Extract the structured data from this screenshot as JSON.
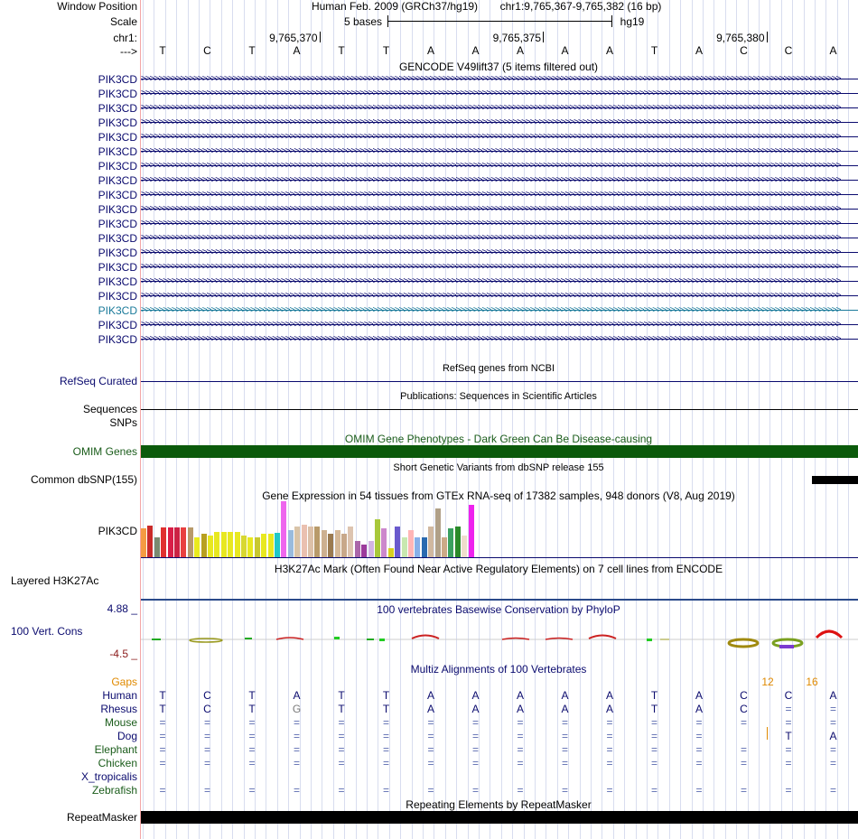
{
  "window_position": {
    "label": "Window Position",
    "assembly": "Human Feb. 2009 (GRCh37/hg19)",
    "range": "chr1:9,765,367-9,765,382 (16 bp)"
  },
  "scale": {
    "label": "Scale",
    "bar_text": "5 bases",
    "db": "hg19"
  },
  "chrom": {
    "label": "chr1:",
    "arrow_label": "--->",
    "positions": [
      "9,765,370",
      "9,765,375",
      "9,765,380"
    ]
  },
  "sequence": [
    "T",
    "C",
    "T",
    "A",
    "T",
    "T",
    "A",
    "A",
    "A",
    "A",
    "A",
    "T",
    "A",
    "C",
    "C",
    "A"
  ],
  "gencode": {
    "title": "GENCODE V49lift37 (5 items filtered out)",
    "transcripts": [
      "PIK3CD",
      "PIK3CD",
      "PIK3CD",
      "PIK3CD",
      "PIK3CD",
      "PIK3CD",
      "PIK3CD",
      "PIK3CD",
      "PIK3CD",
      "PIK3CD",
      "PIK3CD",
      "PIK3CD",
      "PIK3CD",
      "PIK3CD",
      "PIK3CD",
      "PIK3CD",
      "PIK3CD",
      "PIK3CD",
      "PIK3CD"
    ],
    "highlight_index": 16,
    "color": "#0a0a6e",
    "highlight_color": "#1a7a9a"
  },
  "refseq": {
    "label": "RefSeq Curated",
    "title": "RefSeq genes from NCBI"
  },
  "publications": {
    "label": "Sequences",
    "title": "Publications: Sequences in Scientific Articles"
  },
  "snps": {
    "label": "SNPs"
  },
  "omim": {
    "label": "OMIM Genes",
    "title": "OMIM Gene Phenotypes - Dark Green Can Be Disease-causing",
    "color": "#0b5a0b"
  },
  "dbsnp": {
    "label": "Common dbSNP(155)",
    "title": "Short Genetic Variants from dbSNP release 155"
  },
  "gtex": {
    "label": "PIK3CD",
    "title": "Gene Expression in 54 tissues from GTEx RNA-seq of 17382 samples, 948 donors (V8, Aug 2019)"
  },
  "h3k27ac": {
    "label": "Layered H3K27Ac",
    "title": "H3K27Ac Mark (Often Found Near Active Regulatory Elements) on 7 cell lines from ENCODE"
  },
  "phylop": {
    "label": "100 Vert. Cons",
    "max": "4.88 _",
    "min": "-4.5 _",
    "title": "100 vertebrates Basewise Conservation by PhyloP"
  },
  "multiz": {
    "title": "Multiz Alignments of 100 Vertebrates",
    "gaps_label": "Gaps",
    "gap_numbers": [
      "12",
      "16"
    ],
    "rows": [
      {
        "species": "Human",
        "color": "#0a0a6e",
        "bases": [
          "T",
          "C",
          "T",
          "A",
          "T",
          "T",
          "A",
          "A",
          "A",
          "A",
          "A",
          "T",
          "A",
          "C",
          "C",
          "A"
        ]
      },
      {
        "species": "Rhesus",
        "color": "#0a0a6e",
        "bases": [
          "T",
          "C",
          "T",
          "G",
          "T",
          "T",
          "A",
          "A",
          "A",
          "A",
          "A",
          "T",
          "A",
          "C",
          "=",
          "="
        ]
      },
      {
        "species": "Mouse",
        "color": "#1a5c1a",
        "bases": [
          "=",
          "=",
          "=",
          "=",
          "=",
          "=",
          "=",
          "=",
          "=",
          "=",
          "=",
          "=",
          "=",
          "=",
          "=",
          "="
        ]
      },
      {
        "species": "Dog",
        "color": "#0a0a6e",
        "bases": [
          "=",
          "=",
          "=",
          "=",
          "=",
          "=",
          "=",
          "=",
          "=",
          "=",
          "=",
          "=",
          "=",
          "",
          "T",
          "A"
        ]
      },
      {
        "species": "Elephant",
        "color": "#1a5c1a",
        "bases": [
          "=",
          "=",
          "=",
          "=",
          "=",
          "=",
          "=",
          "=",
          "=",
          "=",
          "=",
          "=",
          "=",
          "=",
          "=",
          "="
        ]
      },
      {
        "species": "Chicken",
        "color": "#1a5c1a",
        "bases": [
          "=",
          "=",
          "=",
          "=",
          "=",
          "=",
          "=",
          "=",
          "=",
          "=",
          "=",
          "=",
          "=",
          "=",
          "=",
          "="
        ]
      },
      {
        "species": "X_tropicalis",
        "color": "#0a0a6e",
        "bases": [
          "",
          "",
          "",
          "",
          "",
          "",
          "",
          "",
          "",
          "",
          "",
          "",
          "",
          "",
          "",
          ""
        ]
      },
      {
        "species": "Zebrafish",
        "color": "#1a5c1a",
        "bases": [
          "=",
          "=",
          "=",
          "=",
          "=",
          "=",
          "=",
          "=",
          "=",
          "=",
          "=",
          "=",
          "=",
          "=",
          "=",
          "="
        ]
      }
    ]
  },
  "repeatmasker": {
    "label": "RepeatMasker",
    "title": "Repeating Elements by RepeatMasker"
  }
}
